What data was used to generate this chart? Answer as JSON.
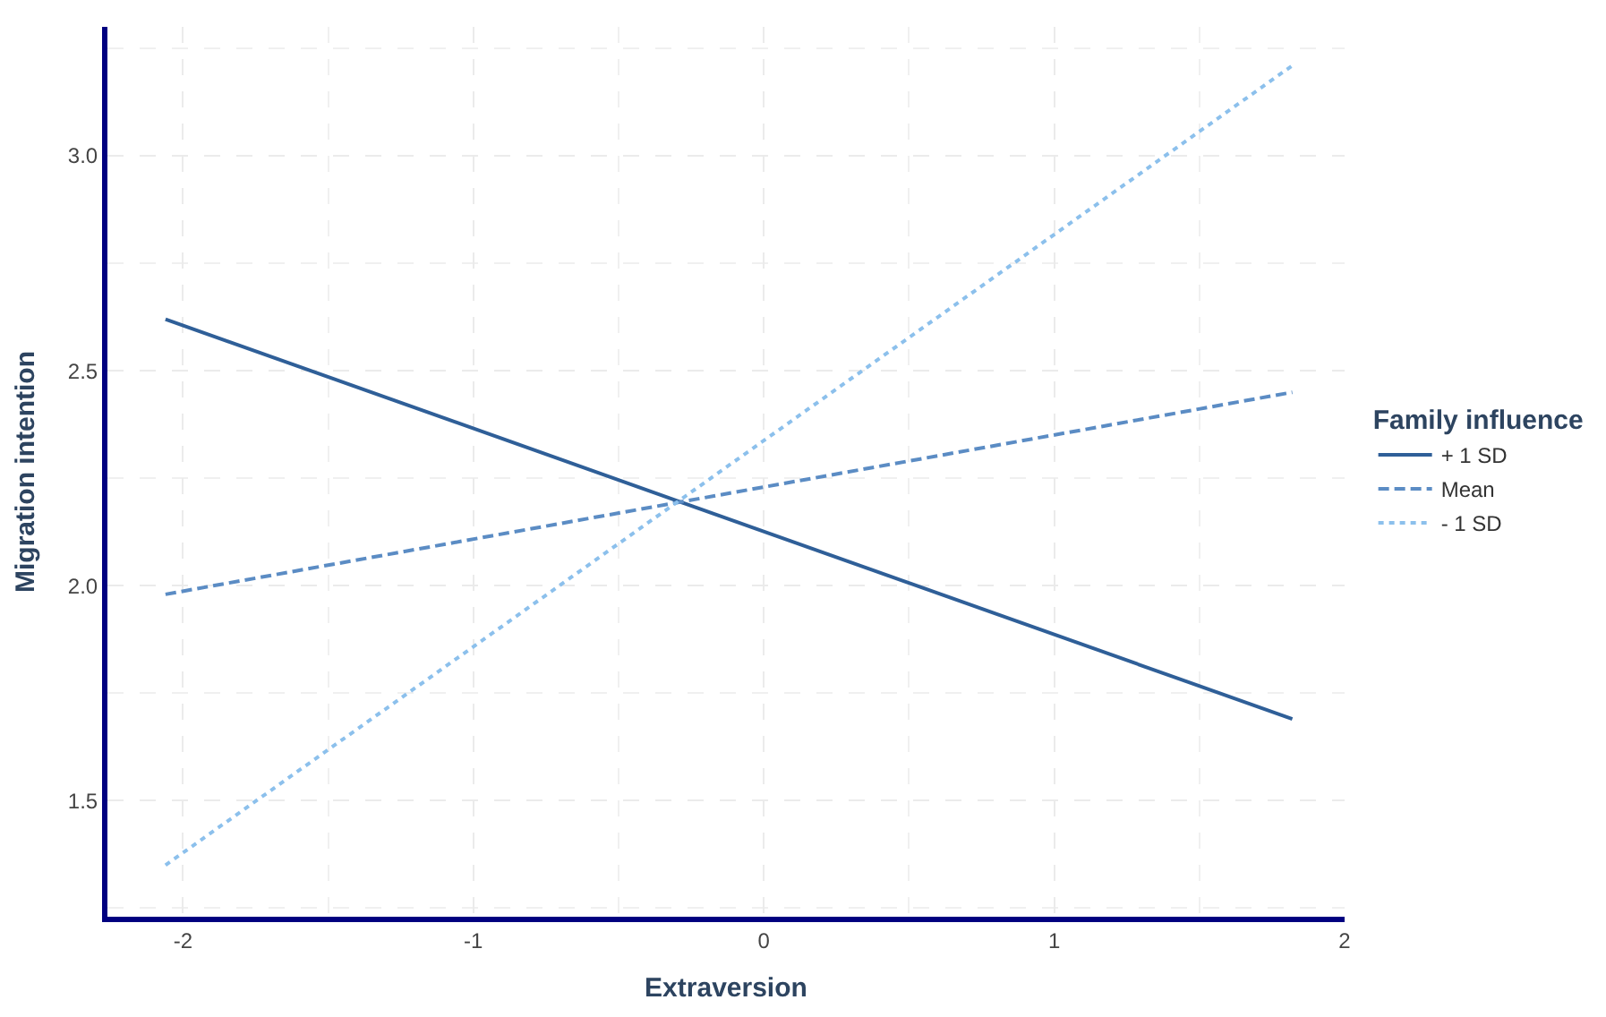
{
  "chart_data": {
    "type": "line",
    "xlabel": "Extraversion",
    "ylabel": "Migration intention",
    "legend_title": "Family influence",
    "legend": "right",
    "x": [
      -2.06,
      1.82
    ],
    "series": [
      {
        "name": "+ 1 SD",
        "color": "#2f5f98",
        "values": [
          2.62,
          1.69
        ],
        "line_style": "solid"
      },
      {
        "name": "Mean",
        "color": "#5b8cc4",
        "values": [
          1.98,
          2.45
        ],
        "line_style": "dashed"
      },
      {
        "name": "- 1 SD",
        "color": "#8cc0ec",
        "values": [
          1.35,
          3.21
        ],
        "line_style": "dotted"
      }
    ],
    "xlim": [
      -2.26,
      2.0
    ],
    "xticks": [
      -2,
      -1,
      0,
      1,
      2
    ],
    "ylim": [
      1.23,
      3.3
    ],
    "yticks": [
      {
        "value": 1.5,
        "label": "1.5"
      },
      {
        "value": 2.0,
        "label": "2.0"
      },
      {
        "value": 2.5,
        "label": "2.5"
      },
      {
        "value": 3.0,
        "label": "3.0"
      }
    ],
    "grid": true
  }
}
